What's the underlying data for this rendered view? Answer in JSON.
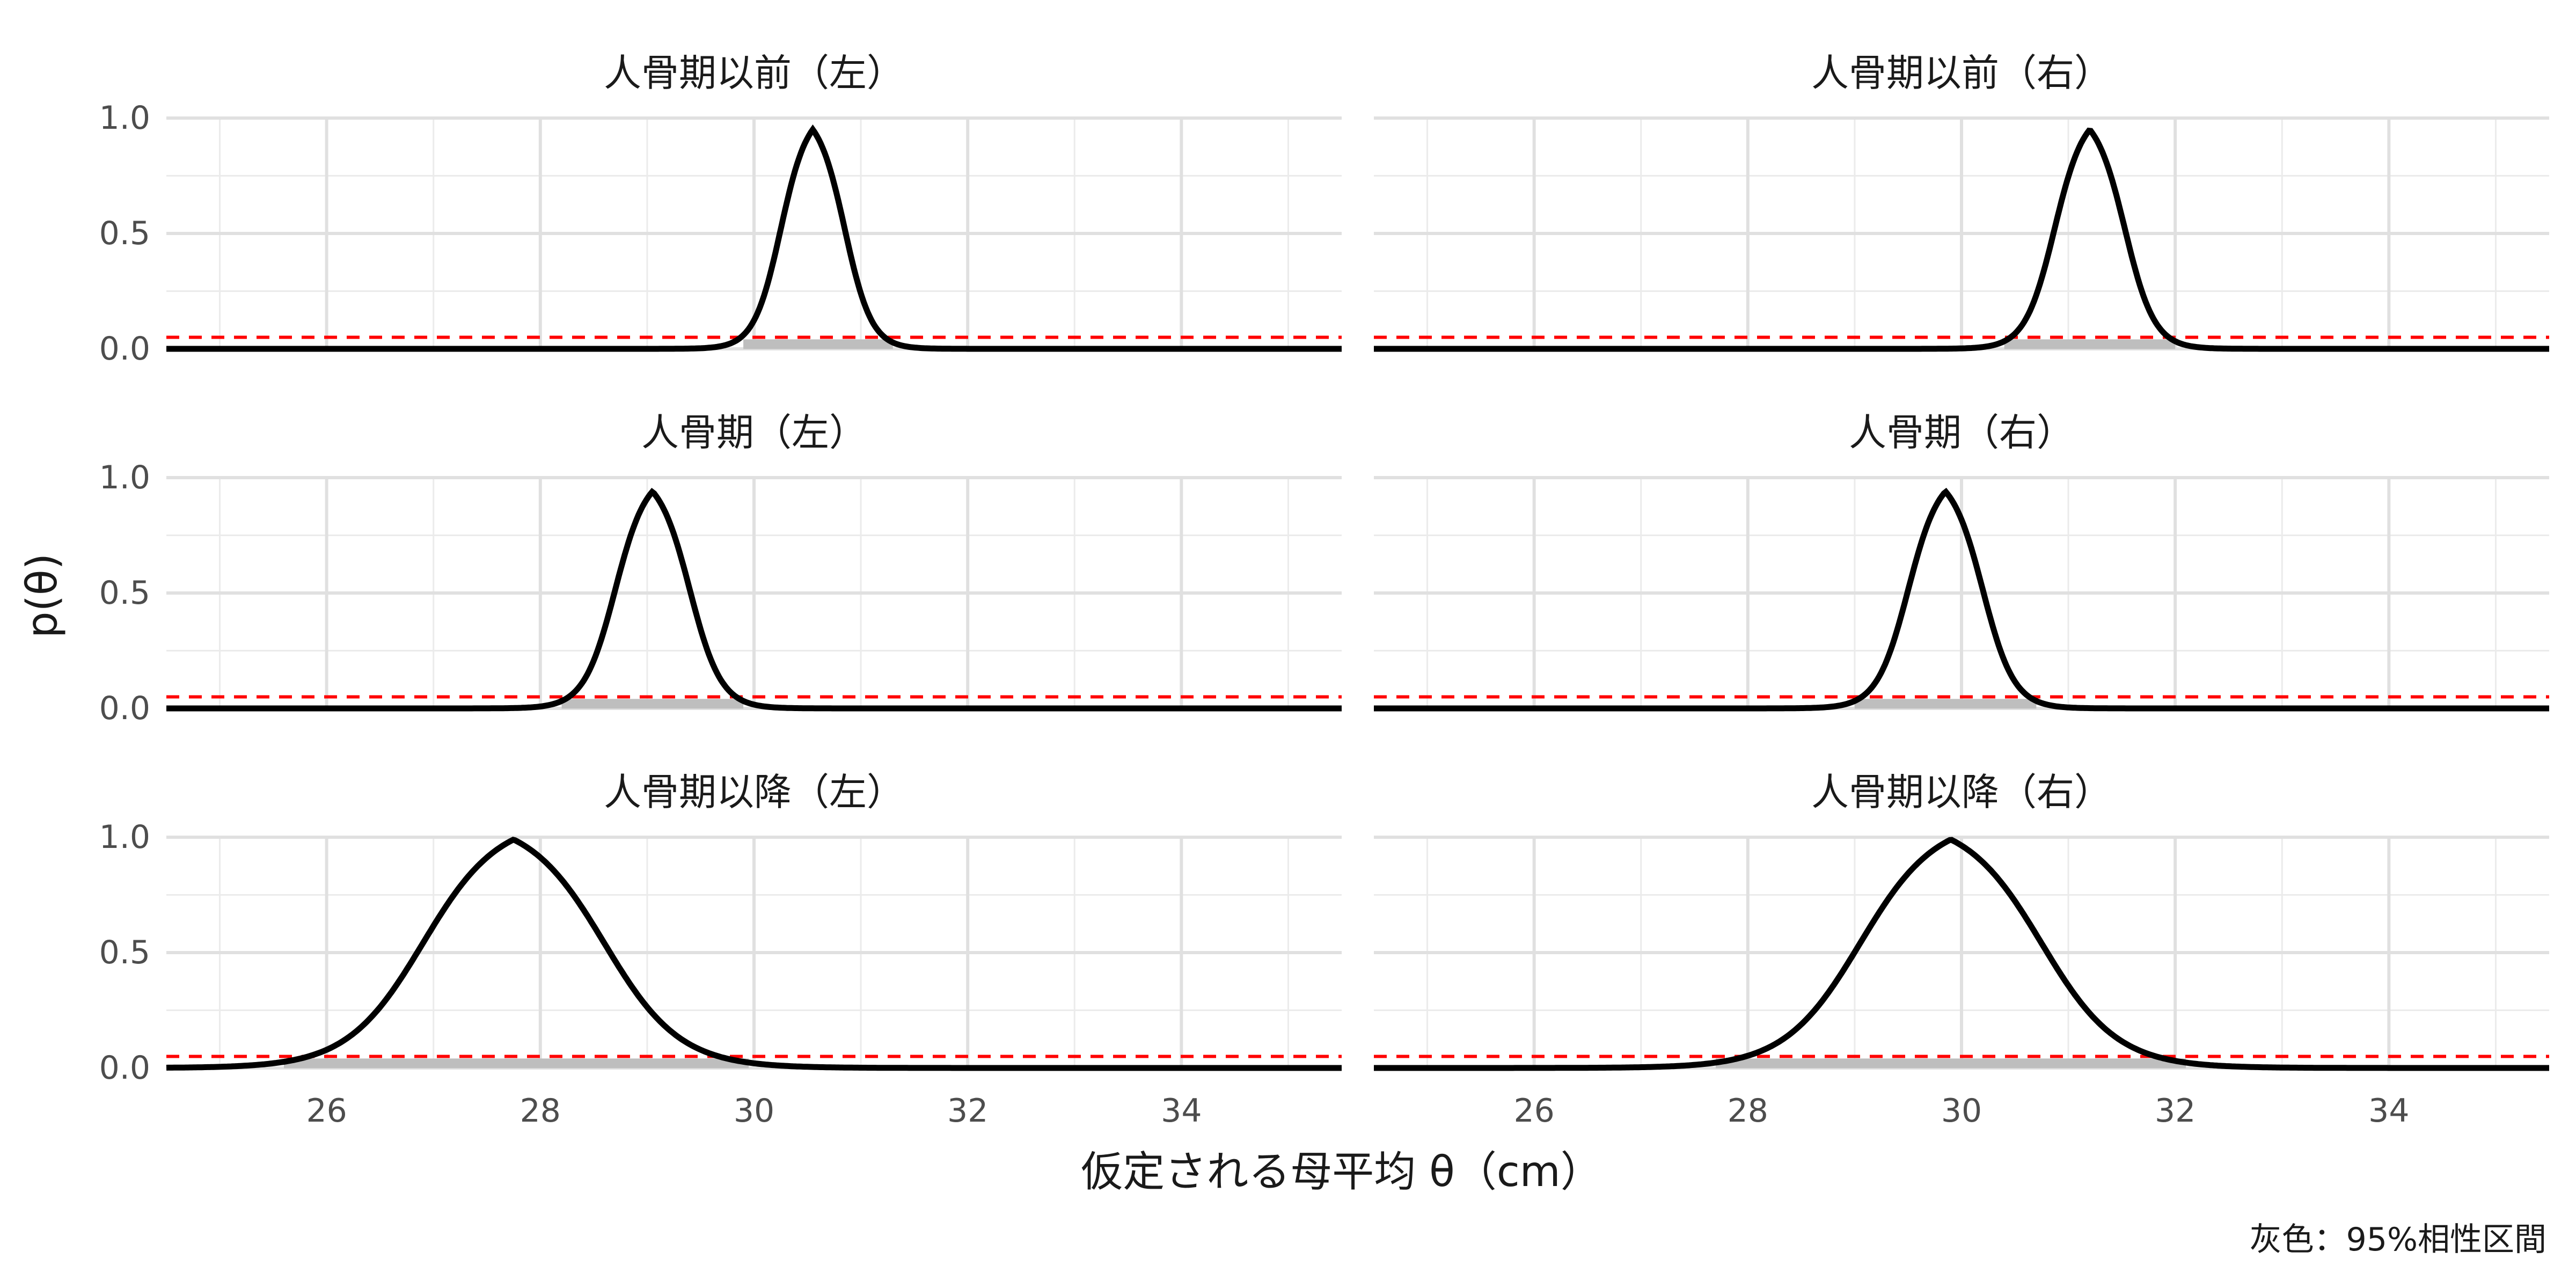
{
  "chart_data": {
    "type": "line",
    "layout": "faceted 3x2",
    "xlabel": "仮定される母平均 θ（cm）",
    "ylabel": "p(θ)",
    "caption": "灰色：95%相性区間",
    "xlim": [
      24.5,
      35.5
    ],
    "ylim": [
      0,
      1.0
    ],
    "x_ticks": [
      "26",
      "28",
      "30",
      "32",
      "34"
    ],
    "y_ticks": [
      "0.0",
      "0.5",
      "1.0"
    ],
    "grid": true,
    "reference_line": {
      "y": 0.05,
      "color": "#ff0000",
      "style": "dashed"
    },
    "curve_color": "#000000",
    "interval_color": "#bebebe",
    "panels": [
      {
        "title": "人骨期以前（左）",
        "peak_x": 30.55,
        "peak_y": 0.95,
        "interval": [
          29.9,
          31.3
        ],
        "scale": 0.3
      },
      {
        "title": "人骨期以前（右）",
        "peak_x": 31.2,
        "peak_y": 0.95,
        "interval": [
          30.4,
          32.0
        ],
        "scale": 0.33
      },
      {
        "title": "人骨期（左）",
        "peak_x": 29.05,
        "peak_y": 0.94,
        "interval": [
          28.2,
          29.9
        ],
        "scale": 0.35
      },
      {
        "title": "人骨期（右）",
        "peak_x": 29.85,
        "peak_y": 0.94,
        "interval": [
          29.0,
          30.7
        ],
        "scale": 0.35
      },
      {
        "title": "人骨期以降（左）",
        "peak_x": 27.75,
        "peak_y": 0.99,
        "interval": [
          25.6,
          29.95
        ],
        "scale": 0.85
      },
      {
        "title": "人骨期以降（右）",
        "peak_x": 29.9,
        "peak_y": 0.99,
        "interval": [
          27.7,
          32.1
        ],
        "scale": 0.85
      }
    ]
  }
}
